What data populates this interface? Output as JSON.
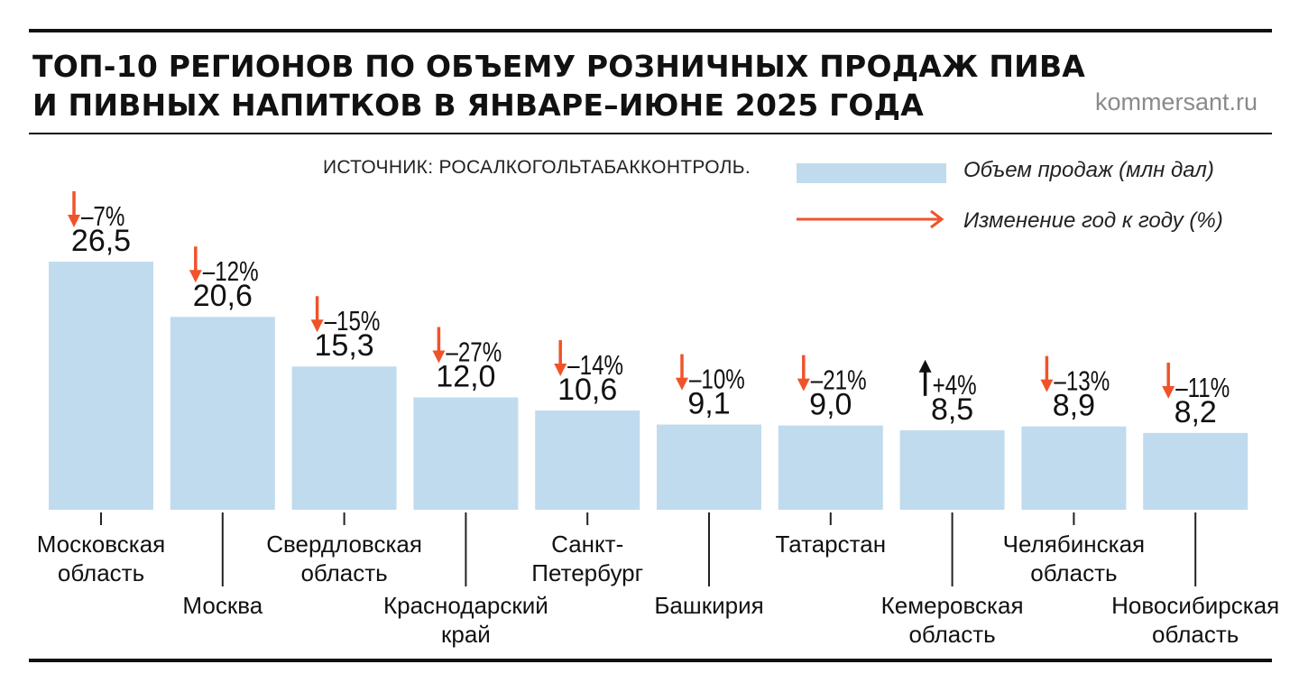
{
  "header": {
    "title_line1": "ТОП-10 РЕГИОНОВ ПО ОБЪЕМУ РОЗНИЧНЫХ ПРОДАЖ ПИВА",
    "title_line2": "И ПИВНЫХ НАПИТКОВ В ЯНВАРЕ–ИЮНЕ 2025 ГОДА",
    "brand": "kommersant.ru"
  },
  "source": "ИСТОЧНИК: РОСАЛКОГОЛЬТАБАККОНТРОЛЬ.",
  "legend": {
    "volume_label": "Объем продаж (млн дал)",
    "change_label": "Изменение год к году (%)"
  },
  "colors": {
    "bar": "#c0dbee",
    "down_arrow": "#f0532a",
    "up_arrow": "#111111",
    "text": "#111111"
  },
  "chart_data": {
    "type": "bar",
    "categories": [
      [
        "Московская",
        "область"
      ],
      [
        "Москва"
      ],
      [
        "Свердловская",
        "область"
      ],
      [
        "Краснодарский",
        "край"
      ],
      [
        "Санкт-",
        "Петербург"
      ],
      [
        "Башкирия"
      ],
      [
        "Татарстан"
      ],
      [
        "Кемеровская",
        "область"
      ],
      [
        "Челябинская",
        "область"
      ],
      [
        "Новосибирская",
        "область"
      ]
    ],
    "series": [
      {
        "name": "Объем продаж (млн дал)",
        "values": [
          26.5,
          20.6,
          15.3,
          12.0,
          10.6,
          9.1,
          9.0,
          8.5,
          8.9,
          8.2
        ],
        "value_labels": [
          "26,5",
          "20,6",
          "15,3",
          "12,0",
          "10,6",
          "9,1",
          "9,0",
          "8,5",
          "8,9",
          "8,2"
        ]
      },
      {
        "name": "Изменение год к году (%)",
        "values": [
          -7,
          -12,
          -15,
          -27,
          -14,
          -10,
          -21,
          4,
          -13,
          -11
        ],
        "value_labels": [
          "–7%",
          "–12%",
          "–15%",
          "–27%",
          "–14%",
          "–10%",
          "–21%",
          "+4%",
          "–13%",
          "–11%"
        ]
      }
    ],
    "ylim": [
      0,
      26.5
    ],
    "grid": false,
    "legend": "top-right"
  }
}
